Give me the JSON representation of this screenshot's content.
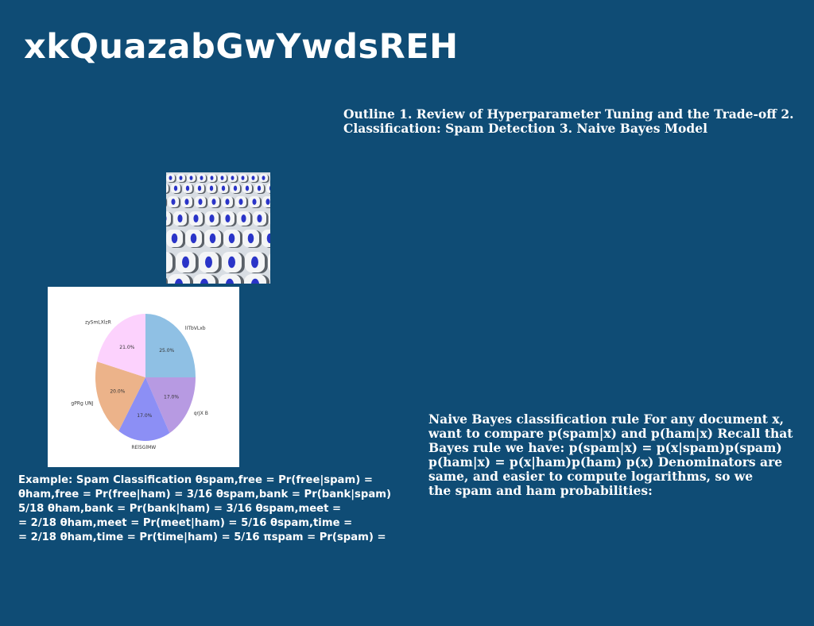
{
  "slide": {
    "title": "xkQuazabGwYwdsREH",
    "outline_text": "Outline 1. Review of Hyperparameter Tuning and the Trade-off 2. Classification: Spam Detection 3. Naive Bayes Model",
    "example_text": "Example: Spam Classification θspam,free = Pr(free|spam) =\nθham,free = Pr(free|ham) = 3/16 θspam,bank = Pr(bank|spam)\n5/18 θham,bank = Pr(bank|ham) = 3/16 θspam,meet =\n= 2/18 θham,meet = Pr(meet|ham) = 5/16 θspam,time =\n= 2/18 θham,time = Pr(time|ham) = 5/16 πspam = Pr(spam) =",
    "naive_bayes_text": "Naive Bayes classification rule For any document x,\nwant to compare p(spam|x) and p(ham|x) Recall that\nBayes rule we have: p(spam|x) = p(x|spam)p(spam)\np(ham|x) = p(x|ham)p(ham) p(x) Denominators are\nsame, and easier to compute logarithms, so we\nthe spam and ham probabilities:"
  },
  "images": {
    "stadium_seats": "stadium-seats-photo"
  },
  "chart_data": {
    "type": "pie",
    "title": "",
    "slices": [
      {
        "label": "lITbVLxb",
        "value": 25.0,
        "pct": "25.0%",
        "color": "#8fc0e4"
      },
      {
        "label": "qrJX B",
        "value": 17.0,
        "pct": "17.0%",
        "color": "#b79ae2"
      },
      {
        "label": "REl5GlMW",
        "value": 17.0,
        "pct": "17.0%",
        "color": "#8c8ff5"
      },
      {
        "label": "gPRg UNJ",
        "value": 20.0,
        "pct": "20.0%",
        "color": "#ecb38a"
      },
      {
        "label": "zySmLXlzR",
        "value": 21.0,
        "pct": "21.0%",
        "color": "#fcd2fd"
      }
    ],
    "start_angle": "12 o'clock",
    "direction": "clockwise"
  }
}
